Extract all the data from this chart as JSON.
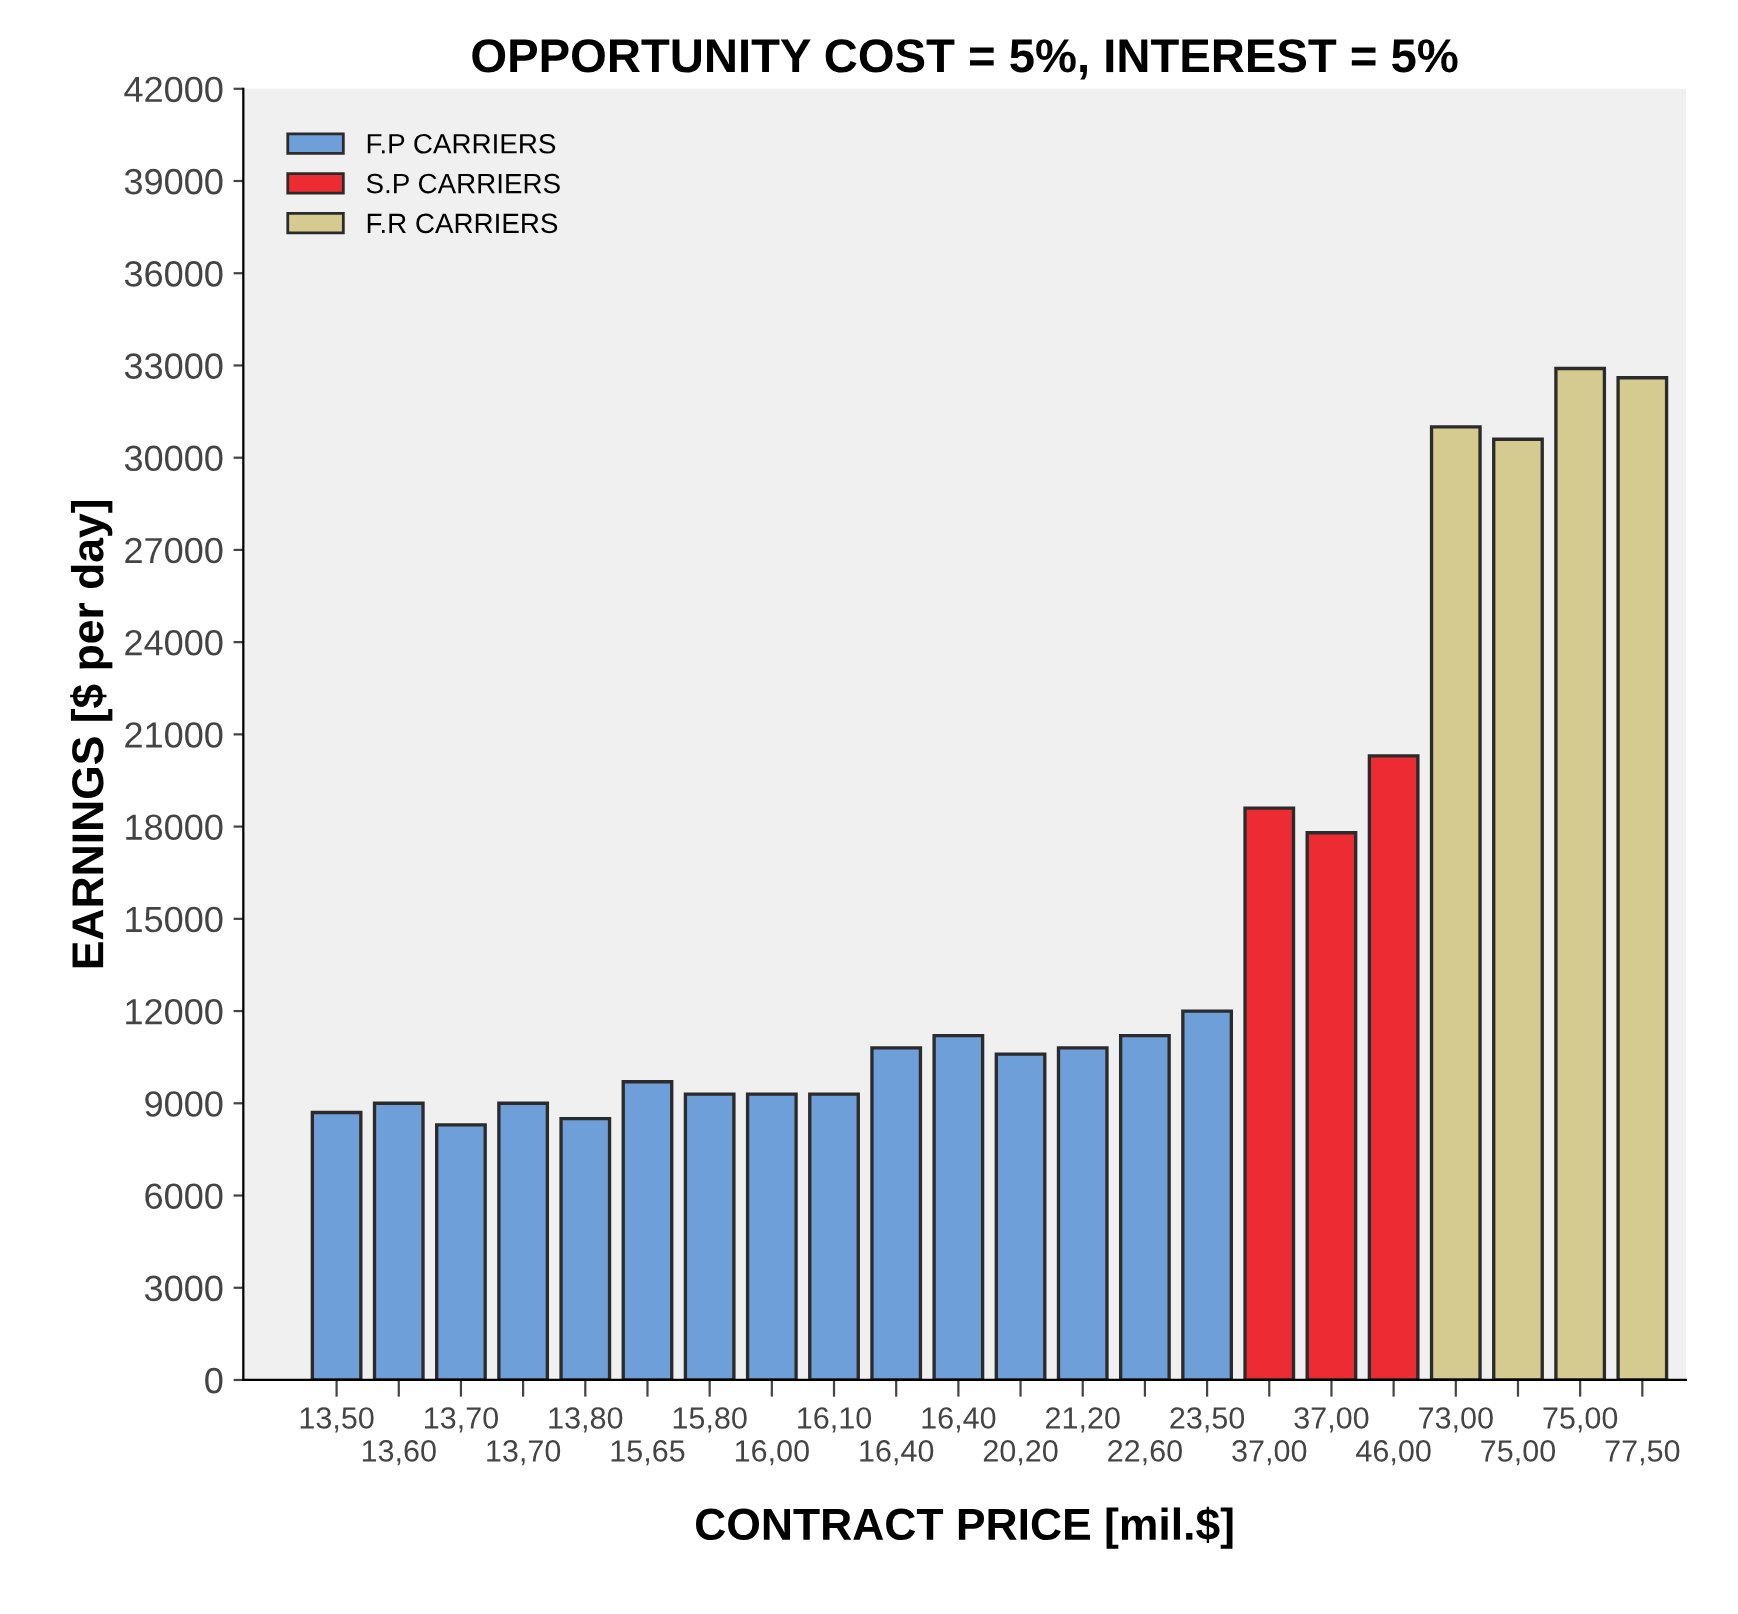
{
  "chart_data": {
    "type": "bar",
    "title": "OPPORTUNITY COST = 5%, INTEREST = 5%",
    "xlabel": "CONTRACT PRICE [mil.$]",
    "ylabel": "EARNINGS [$ per day]",
    "categories": [
      "13,50",
      "13,60",
      "13,70",
      "13,70",
      "13,80",
      "15,65",
      "15,80",
      "16,00",
      "16,10",
      "16,40",
      "16,40",
      "20,20",
      "21,20",
      "22,60",
      "23,50",
      "37,00",
      "37,00",
      "46,00",
      "73,00",
      "75,00",
      "75,00",
      "77,50"
    ],
    "series": [
      {
        "name": "F.P CARRIERS",
        "color": "#6f9fd8",
        "values": [
          8700,
          9000,
          8300,
          9000,
          8500,
          9700,
          9300,
          9300,
          9300,
          10800,
          11200,
          10600,
          10800,
          11200,
          12000,
          null,
          null,
          null,
          null,
          null,
          null,
          null
        ]
      },
      {
        "name": "S.P CARRIERS",
        "color": "#ec2c32",
        "values": [
          null,
          null,
          null,
          null,
          null,
          null,
          null,
          null,
          null,
          null,
          null,
          null,
          null,
          null,
          null,
          18600,
          17800,
          20300,
          null,
          null,
          null,
          null
        ]
      },
      {
        "name": "F.R CARRIERS",
        "color": "#d5cb91",
        "values": [
          null,
          null,
          null,
          null,
          null,
          null,
          null,
          null,
          null,
          null,
          null,
          null,
          null,
          null,
          null,
          null,
          null,
          null,
          31000,
          30600,
          32900,
          32600
        ]
      }
    ],
    "ylim": [
      0,
      42000
    ],
    "yticks": [
      0,
      3000,
      6000,
      9000,
      12000,
      15000,
      18000,
      21000,
      24000,
      27000,
      30000,
      33000,
      36000,
      39000,
      42000
    ],
    "grid": false,
    "legend": "top left"
  }
}
